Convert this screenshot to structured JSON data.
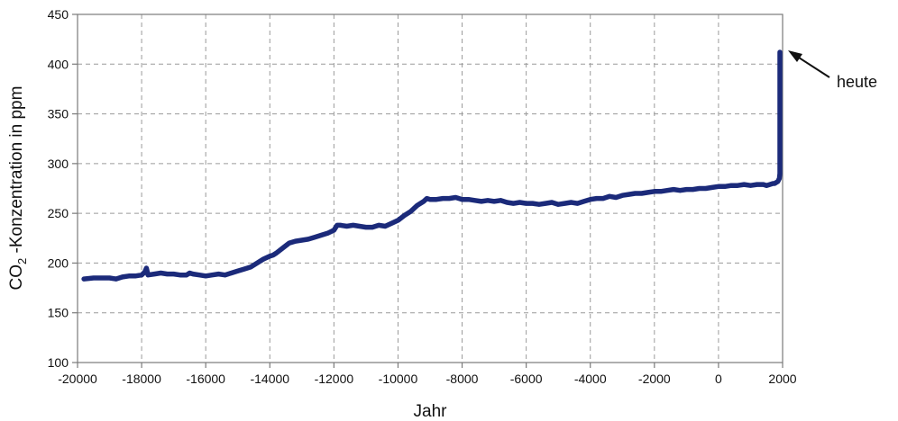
{
  "chart_data": {
    "type": "line",
    "title": "",
    "xlabel": "Jahr",
    "ylabel_main": "CO",
    "ylabel_sub": "2",
    "ylabel_rest": " -Konzentration in ppm",
    "xlim": [
      -20000,
      2000
    ],
    "ylim": [
      100,
      450
    ],
    "xticks": [
      -20000,
      -18000,
      -16000,
      -14000,
      -12000,
      -10000,
      -8000,
      -6000,
      -4000,
      -2000,
      0,
      2000
    ],
    "yticks": [
      100,
      150,
      200,
      250,
      300,
      350,
      400,
      450
    ],
    "grid": true,
    "line_color": "#1b2a7a",
    "annotation": {
      "text": "heute",
      "x": 2000,
      "y": 412
    },
    "series": [
      {
        "x": [
          -19800,
          -19500,
          -19200,
          -19000,
          -18800,
          -18600,
          -18400,
          -18200,
          -18000,
          -17900,
          -17850,
          -17800,
          -17600,
          -17400,
          -17200,
          -17000,
          -16800,
          -16600,
          -16500,
          -16400,
          -16200,
          -16000,
          -15800,
          -15600,
          -15400,
          -15200,
          -15000,
          -14800,
          -14600,
          -14400,
          -14200,
          -14000,
          -13900,
          -13800,
          -13600,
          -13400,
          -13200,
          -13000,
          -12800,
          -12600,
          -12400,
          -12200,
          -12000,
          -11900,
          -11800,
          -11600,
          -11400,
          -11200,
          -11000,
          -10800,
          -10600,
          -10400,
          -10200,
          -10000,
          -9800,
          -9600,
          -9400,
          -9200,
          -9100,
          -9000,
          -8800,
          -8600,
          -8400,
          -8200,
          -8000,
          -7800,
          -7600,
          -7400,
          -7200,
          -7000,
          -6800,
          -6600,
          -6400,
          -6200,
          -6000,
          -5800,
          -5600,
          -5400,
          -5200,
          -5000,
          -4800,
          -4600,
          -4400,
          -4200,
          -4000,
          -3800,
          -3600,
          -3400,
          -3200,
          -3000,
          -2800,
          -2600,
          -2400,
          -2200,
          -2000,
          -1800,
          -1600,
          -1400,
          -1200,
          -1000,
          -800,
          -600,
          -400,
          -200,
          0,
          200,
          400,
          600,
          800,
          1000,
          1200,
          1400,
          1500,
          1600,
          1700,
          1750,
          1800,
          1850,
          1900,
          1950,
          1970,
          1990,
          2000,
          2010
        ],
        "y": [
          184,
          185,
          185,
          185,
          184,
          186,
          187,
          187,
          188,
          191,
          195,
          188,
          189,
          190,
          189,
          189,
          188,
          188,
          190,
          189,
          188,
          187,
          188,
          189,
          188,
          190,
          192,
          194,
          196,
          200,
          204,
          207,
          208,
          210,
          215,
          220,
          222,
          223,
          224,
          226,
          228,
          230,
          233,
          238,
          238,
          237,
          238,
          237,
          236,
          236,
          238,
          237,
          240,
          243,
          248,
          252,
          258,
          262,
          265,
          264,
          264,
          265,
          265,
          266,
          264,
          264,
          263,
          262,
          263,
          262,
          263,
          261,
          260,
          261,
          260,
          260,
          259,
          260,
          261,
          259,
          260,
          261,
          260,
          262,
          264,
          265,
          265,
          267,
          266,
          268,
          269,
          270,
          270,
          271,
          272,
          272,
          273,
          274,
          273,
          274,
          274,
          275,
          275,
          276,
          277,
          277,
          278,
          278,
          279,
          278,
          279,
          279,
          278,
          279,
          280,
          280,
          281,
          282,
          285,
          290,
          300,
          330,
          370,
          412
        ]
      }
    ]
  }
}
